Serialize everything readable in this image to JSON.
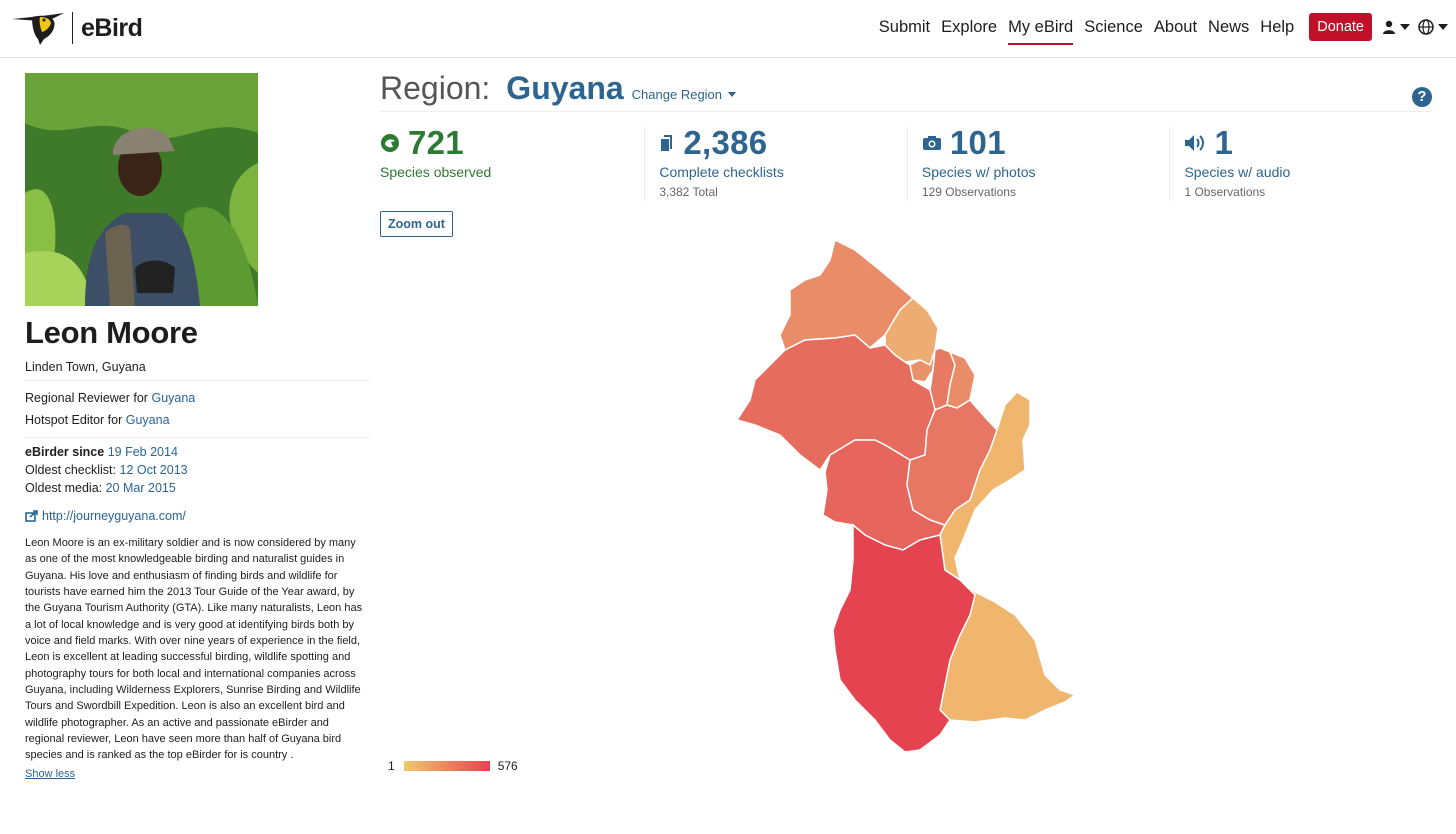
{
  "header": {
    "logo_text": "eBird",
    "nav": [
      {
        "label": "Submit"
      },
      {
        "label": "Explore"
      },
      {
        "label": "My eBird"
      },
      {
        "label": "Science"
      },
      {
        "label": "About"
      },
      {
        "label": "News"
      },
      {
        "label": "Help"
      }
    ],
    "active_nav": "My eBird",
    "donate_label": "Donate",
    "accent_color": "#c0102a"
  },
  "profile": {
    "name": "Leon Moore",
    "location": "Linden Town, Guyana",
    "reviewer_prefix": "Regional Reviewer for",
    "reviewer_region": "Guyana",
    "hotspot_prefix": "Hotspot Editor for",
    "hotspot_region": "Guyana",
    "since_label": "eBirder since",
    "since_value": "19 Feb 2014",
    "oldest_checklist_label": "Oldest checklist:",
    "oldest_checklist_value": "12 Oct 2013",
    "oldest_media_label": "Oldest media:",
    "oldest_media_value": "20 Mar 2015",
    "website": "http://journeyguyana.com/",
    "bio": "Leon Moore is an ex-military soldier and is now considered by many as one of the most knowledgeable birding and naturalist guides in Guyana. His love and enthusiasm of finding birds and wildlife for tourists have earned him the 2013 Tour Guide of the Year award, by the Guyana Tourism Authority (GTA). Like many naturalists, Leon has a lot of local knowledge and is very good at identifying birds both by voice and field marks. With over nine years of experience in the field, Leon is excellent at leading successful birding, wildlife spotting and photography tours for both local and international companies across Guyana, including Wilderness Explorers, Sunrise Birding and Wildlife Tours and Swordbill Expedition. Leon is also an excellent bird and wildlife photographer. As an active and passionate eBirder and regional reviewer, Leon have seen more than half of Guyana bird species and is ranked as the top eBirder for is country .",
    "show_less": "Show less"
  },
  "region": {
    "label": "Region:",
    "name": "Guyana",
    "change_label": "Change Region",
    "help": "?"
  },
  "stats": [
    {
      "icon": "species-icon",
      "number": "721",
      "label": "Species observed",
      "sub": ""
    },
    {
      "icon": "checklist-icon",
      "number": "2,386",
      "label": "Complete checklists",
      "sub": "3,382 Total"
    },
    {
      "icon": "camera-icon",
      "number": "101",
      "label": "Species w/ photos",
      "sub": "129 Observations"
    },
    {
      "icon": "audio-icon",
      "number": "1",
      "label": "Species w/ audio",
      "sub": "1 Observations"
    }
  ],
  "zoom_label": "Zoom out",
  "legend": {
    "min": "1",
    "max": "576",
    "color_min": "#f1c86d",
    "color_max": "#e4434f"
  },
  "map_regions": [
    {
      "id": "barima-waini",
      "color": "#e98d68"
    },
    {
      "id": "pomeroon-supenaam",
      "color": "#ecac72"
    },
    {
      "id": "essequibo-islands",
      "color": "#e9926a"
    },
    {
      "id": "demerara-mahaica",
      "color": "#e77a63"
    },
    {
      "id": "mahaica-berbice",
      "color": "#e98d68"
    },
    {
      "id": "cuyuni-mazaruni",
      "color": "#e66d5e"
    },
    {
      "id": "potaro-siparuni",
      "color": "#e6655c"
    },
    {
      "id": "upper-demerara-berbice",
      "color": "#e77762"
    },
    {
      "id": "east-berbice-corentyne",
      "color": "#f0b66e"
    },
    {
      "id": "upper-takutu-essequibo",
      "color": "#e4434f"
    }
  ]
}
